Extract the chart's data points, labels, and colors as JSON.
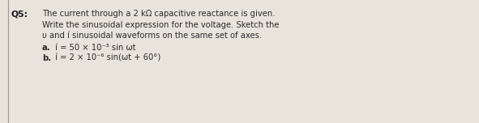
{
  "background_color": "#e8e4dc",
  "border_color": "#999999",
  "question_label": "Q5:",
  "line1": "The current through a 2 kΩ capacitive reactance is given.",
  "line2": "Write the sinusoidal expression for the voltage. Sketch the",
  "line3": "υ and í sinusoidal waveforms on the same set of axes.",
  "line4a_label": "a.",
  "line4a_text": "í = 50 × 10⁻³ sin ωt",
  "line5b_label": "b.",
  "line5b_text": "í = 2 × 10⁻⁶ sin(ωt + 60°)",
  "font_size_main": 7.2,
  "font_size_label": 7.8,
  "text_color": "#2a2a2a",
  "label_color": "#1a1a1a",
  "figwidth": 5.91,
  "figheight": 1.52,
  "dpi": 100
}
